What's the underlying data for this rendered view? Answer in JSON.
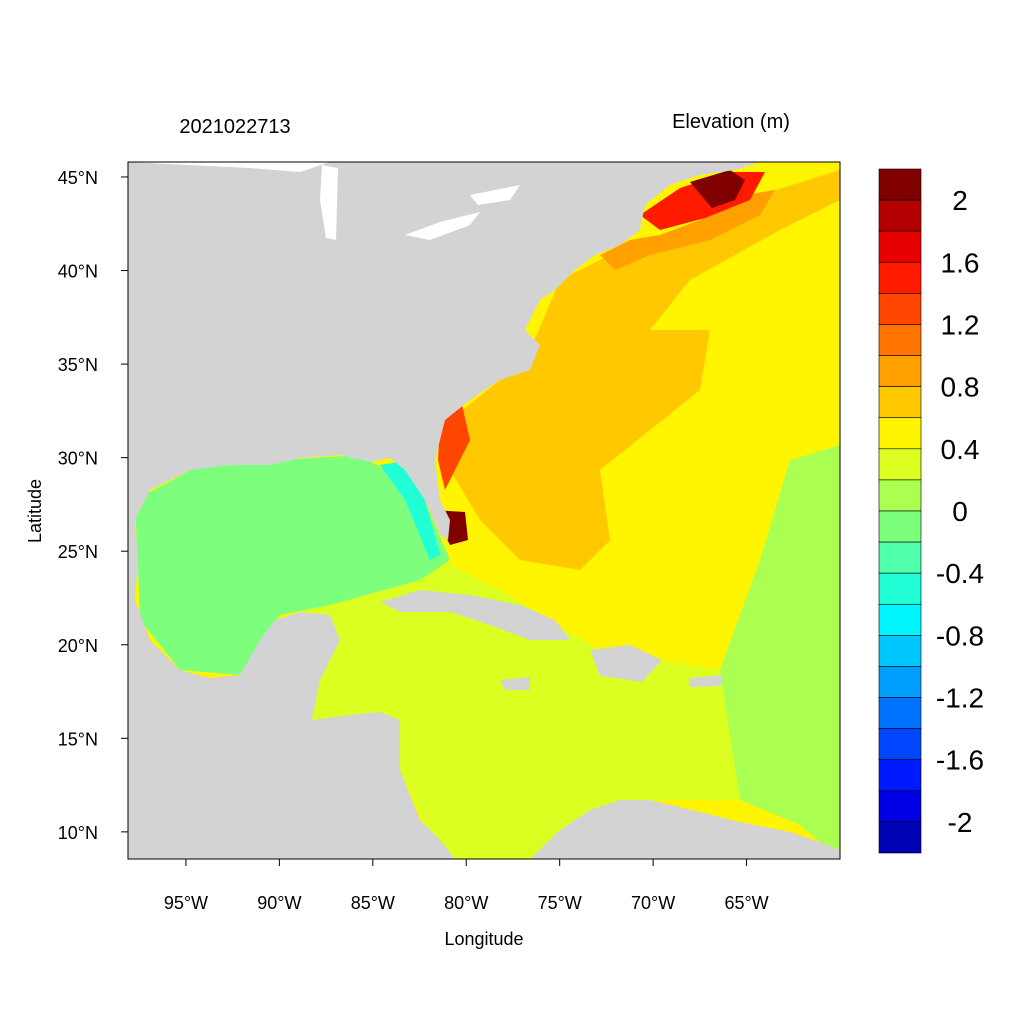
{
  "title_left": "2021022713",
  "title_right": "Elevation (m)",
  "xlabel": "Longitude",
  "ylabel": "Latitude",
  "x_ticks": [
    "95°W",
    "90°W",
    "85°W",
    "80°W",
    "75°W",
    "70°W",
    "65°W"
  ],
  "x_tick_values": [
    -95,
    -90,
    -85,
    -80,
    -75,
    -70,
    -65
  ],
  "y_ticks": [
    "45°N",
    "40°N",
    "35°N",
    "30°N",
    "25°N",
    "20°N",
    "15°N",
    "10°N"
  ],
  "y_tick_values": [
    45,
    40,
    35,
    30,
    25,
    20,
    15,
    10
  ],
  "lon_range": [
    -98.1,
    -60.0
  ],
  "lat_range": [
    8.55,
    45.8
  ],
  "land_color": "#d3d3d3",
  "colorbar": {
    "labels": [
      "2",
      "1.6",
      "1.2",
      "0.8",
      "0.4",
      "0",
      "-0.4",
      "-0.8",
      "-1.2",
      "-1.6",
      "-2"
    ],
    "levels_range": [
      -2.2,
      2.2
    ],
    "step": 0.2,
    "colors": [
      "#800000",
      "#b40000",
      "#e60000",
      "#ff1a00",
      "#ff4600",
      "#ff7300",
      "#ff9f00",
      "#ffc800",
      "#fff500",
      "#dcff21",
      "#aaff50",
      "#7dff7d",
      "#50ffaa",
      "#21ffd7",
      "#00f5ff",
      "#00c8ff",
      "#009fff",
      "#0073ff",
      "#0046ff",
      "#001aff",
      "#0000e6",
      "#0000b4"
    ]
  }
}
